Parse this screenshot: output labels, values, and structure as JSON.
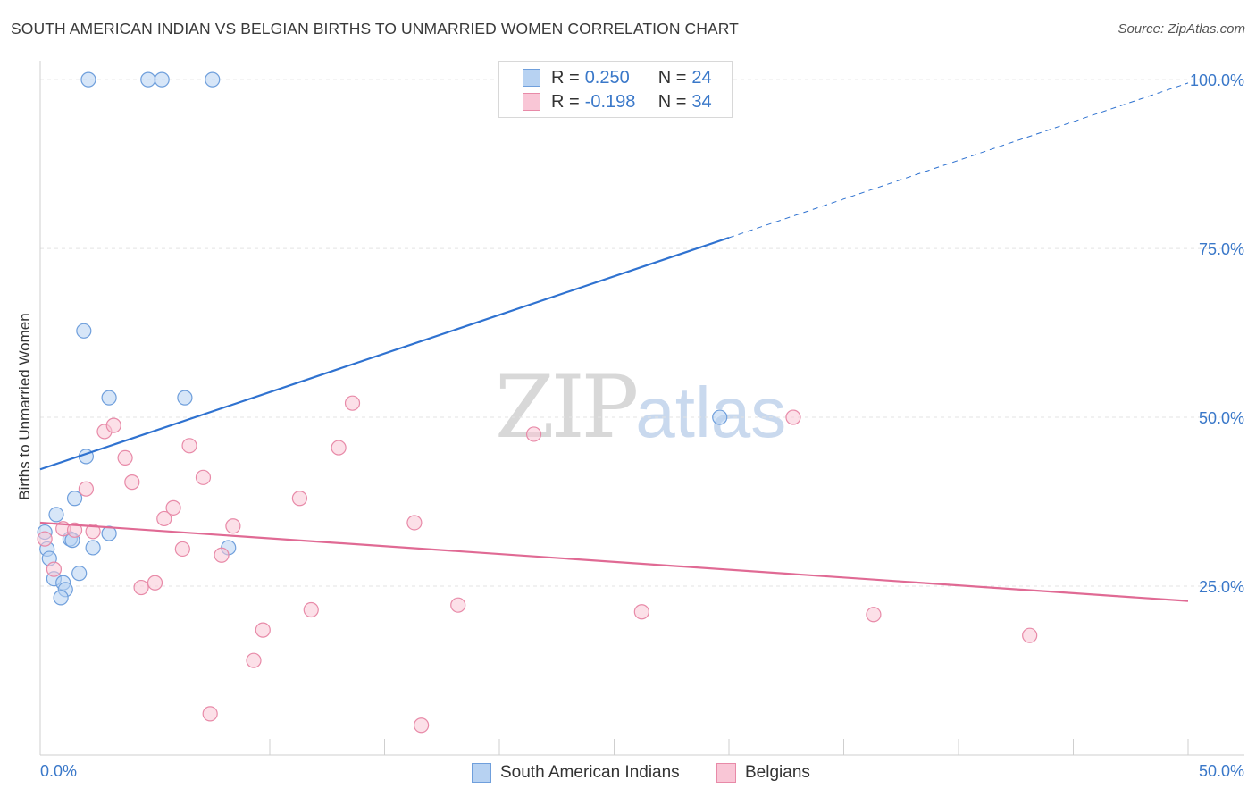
{
  "header": {
    "title": "SOUTH AMERICAN INDIAN VS BELGIAN BIRTHS TO UNMARRIED WOMEN CORRELATION CHART",
    "source": "Source: ZipAtlas.com"
  },
  "watermark": {
    "zip": "ZIP",
    "atlas": "atlas"
  },
  "legend": {
    "series1": {
      "r_label": "R =",
      "r_value": "0.250",
      "n_label": "N =",
      "n_value": "24"
    },
    "series2": {
      "r_label": "R =",
      "r_value": "-0.198",
      "n_label": "N =",
      "n_value": "34"
    }
  },
  "bottom_legend": {
    "series1": "South American Indians",
    "series2": "Belgians"
  },
  "colors": {
    "blue_fill": "#b7d2f2",
    "blue_stroke": "#6f9fdc",
    "blue_line": "#2f72d0",
    "pink_fill": "#f9c6d6",
    "pink_stroke": "#e88aa8",
    "pink_line": "#e06a94",
    "axis_label": "#3a78c9",
    "grid": "#e3e3e3"
  },
  "chart_data": {
    "type": "scatter",
    "title": "SOUTH AMERICAN INDIAN VS BELGIAN BIRTHS TO UNMARRIED WOMEN CORRELATION CHART",
    "xlabel": "",
    "ylabel": "Births to Unmarried Women",
    "xlim": [
      0,
      50
    ],
    "ylim": [
      0,
      102
    ],
    "x_tick_labels": [
      "0.0%",
      "50.0%"
    ],
    "y_ticks": [
      25,
      50,
      75,
      100
    ],
    "y_tick_labels": [
      "25.0%",
      "50.0%",
      "75.0%",
      "100.0%"
    ],
    "grid": true,
    "legend_position": "top-center",
    "series": [
      {
        "name": "South American Indians",
        "color": "#6f9fdc",
        "r": 0.25,
        "n": 24,
        "trendline": {
          "x0": 0,
          "y0": 42.3,
          "x1": 30,
          "y1": 76.6,
          "dashed_to_x": 50,
          "dashed_to_y": 99.5
        },
        "points": [
          [
            2.1,
            100
          ],
          [
            4.7,
            100
          ],
          [
            5.3,
            100
          ],
          [
            7.5,
            100
          ],
          [
            1.9,
            62.8
          ],
          [
            3.0,
            52.9
          ],
          [
            6.3,
            52.9
          ],
          [
            2.0,
            44.2
          ],
          [
            1.5,
            38.0
          ],
          [
            0.7,
            35.6
          ],
          [
            1.3,
            32.0
          ],
          [
            1.4,
            31.8
          ],
          [
            3.0,
            32.8
          ],
          [
            0.3,
            30.5
          ],
          [
            2.3,
            30.7
          ],
          [
            8.2,
            30.7
          ],
          [
            0.4,
            29.1
          ],
          [
            1.7,
            26.9
          ],
          [
            0.6,
            26.1
          ],
          [
            1.0,
            25.5
          ],
          [
            1.1,
            24.5
          ],
          [
            0.9,
            23.3
          ],
          [
            0.2,
            33.0
          ],
          [
            29.6,
            50.0
          ]
        ]
      },
      {
        "name": "Belgians",
        "color": "#e88aa8",
        "r": -0.198,
        "n": 34,
        "trendline": {
          "x0": 0,
          "y0": 34.4,
          "x1": 50,
          "y1": 22.8
        },
        "points": [
          [
            0.2,
            32.0
          ],
          [
            0.6,
            27.5
          ],
          [
            1.0,
            33.5
          ],
          [
            1.5,
            33.3
          ],
          [
            2.0,
            39.4
          ],
          [
            2.3,
            33.1
          ],
          [
            2.8,
            47.9
          ],
          [
            3.2,
            48.8
          ],
          [
            3.7,
            44.0
          ],
          [
            4.0,
            40.4
          ],
          [
            4.4,
            24.8
          ],
          [
            5.0,
            25.5
          ],
          [
            5.4,
            35.0
          ],
          [
            5.8,
            36.6
          ],
          [
            6.2,
            30.5
          ],
          [
            6.5,
            45.8
          ],
          [
            7.1,
            41.1
          ],
          [
            7.4,
            6.1
          ],
          [
            7.9,
            29.6
          ],
          [
            8.4,
            33.9
          ],
          [
            9.3,
            14.0
          ],
          [
            9.7,
            18.5
          ],
          [
            11.3,
            38.0
          ],
          [
            11.8,
            21.5
          ],
          [
            13.0,
            45.5
          ],
          [
            13.6,
            52.1
          ],
          [
            16.3,
            34.4
          ],
          [
            16.6,
            4.4
          ],
          [
            18.2,
            22.2
          ],
          [
            21.5,
            47.5
          ],
          [
            26.2,
            21.2
          ],
          [
            32.8,
            50.0
          ],
          [
            36.3,
            20.8
          ],
          [
            43.1,
            17.7
          ]
        ]
      }
    ]
  }
}
